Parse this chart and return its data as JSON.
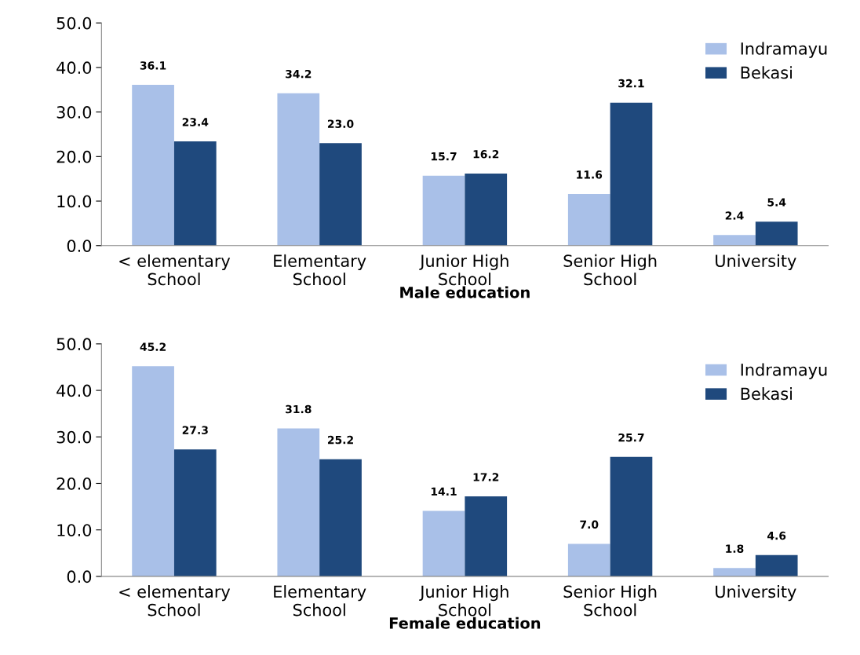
{
  "chart_data": [
    {
      "type": "bar",
      "xlabel": "Male education",
      "categories": [
        "< elementary\nSchool",
        "Elementary\nSchool",
        "Junior High\nSchool",
        "Senior High\nSchool",
        "University"
      ],
      "series": [
        {
          "name": "Indramayu",
          "color": "#a9c0e8",
          "values": [
            36.1,
            34.2,
            15.7,
            11.6,
            2.4
          ],
          "value_labels": [
            "36.1",
            "34.2",
            "15.7",
            "11.6",
            "2.4"
          ]
        },
        {
          "name": "Bekasi",
          "color": "#1f497d",
          "values": [
            23.4,
            23.0,
            16.2,
            32.1,
            5.4
          ],
          "value_labels": [
            "23.4",
            "23.0",
            "16.2",
            "32.1",
            "5.4"
          ]
        }
      ],
      "ylim": [
        0,
        50
      ],
      "yticks": [
        {
          "value": 0,
          "label": "0.0"
        },
        {
          "value": 10,
          "label": "10.0"
        },
        {
          "value": 20,
          "label": "20.0"
        },
        {
          "value": 30,
          "label": "30.0"
        },
        {
          "value": 40,
          "label": "40.0"
        },
        {
          "value": 50,
          "label": "50.0"
        }
      ],
      "legend": "top right",
      "grid": false
    },
    {
      "type": "bar",
      "xlabel": "Female education",
      "categories": [
        "< elementary\nSchool",
        "Elementary\nSchool",
        "Junior High\nSchool",
        "Senior High\nSchool",
        "University"
      ],
      "series": [
        {
          "name": "Indramayu",
          "color": "#a9c0e8",
          "values": [
            45.2,
            31.8,
            14.1,
            7.0,
            1.8
          ],
          "value_labels": [
            "45.2",
            "31.8",
            "14.1",
            "7.0",
            "1.8"
          ]
        },
        {
          "name": "Bekasi",
          "color": "#1f497d",
          "values": [
            27.3,
            25.2,
            17.2,
            25.7,
            4.6
          ],
          "value_labels": [
            "27.3",
            "25.2",
            "17.2",
            "25.7",
            "4.6"
          ]
        }
      ],
      "ylim": [
        0,
        50
      ],
      "yticks": [
        {
          "value": 0,
          "label": "0.0"
        },
        {
          "value": 10,
          "label": "10.0"
        },
        {
          "value": 20,
          "label": "20.0"
        },
        {
          "value": 30,
          "label": "30.0"
        },
        {
          "value": 40,
          "label": "40.0"
        },
        {
          "value": 50,
          "label": "50.0"
        }
      ],
      "legend": "top right",
      "grid": false
    }
  ]
}
